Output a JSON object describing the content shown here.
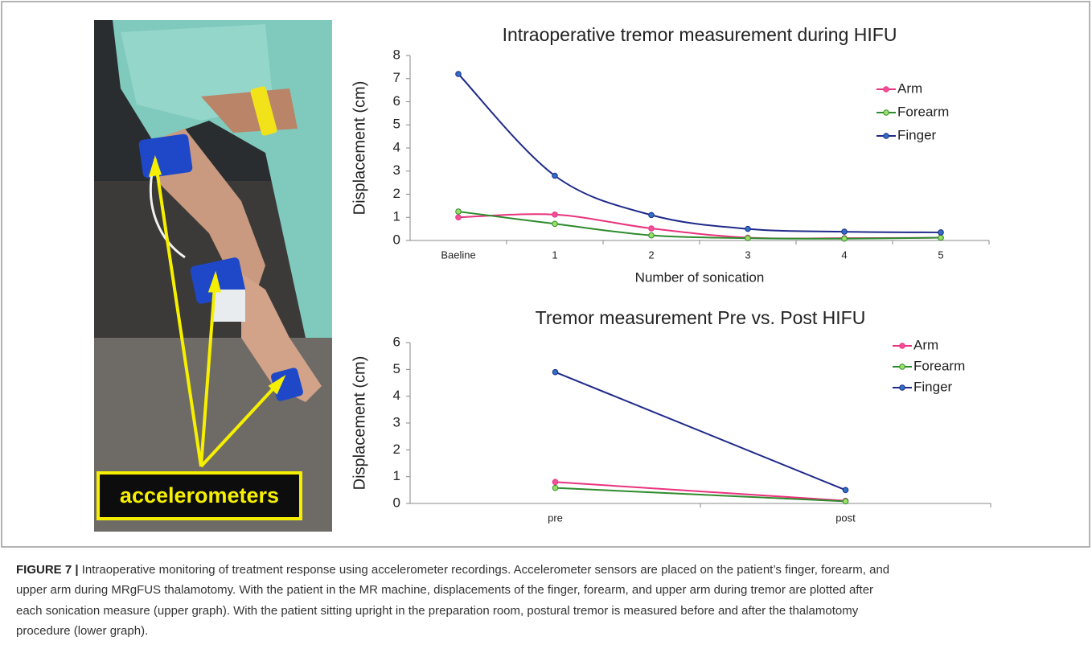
{
  "photo": {
    "label": "accelerometers"
  },
  "chart_data": [
    {
      "type": "line",
      "smooth": true,
      "title": "Intraoperative tremor measurement during HIFU",
      "x_label": "Number of sonication",
      "y_label": "Displacement (cm)",
      "categories": [
        "Baeline",
        "1",
        "2",
        "3",
        "4",
        "5"
      ],
      "series": [
        {
          "name": "Arm",
          "color": "#e8337d",
          "marker_color": "#f0509a",
          "values": [
            1.0,
            1.12,
            0.52,
            0.12,
            0.1,
            0.12
          ]
        },
        {
          "name": "Forearm",
          "color": "#2e8b2e",
          "marker_color": "#9ae066",
          "values": [
            1.25,
            0.72,
            0.22,
            0.1,
            0.08,
            0.12
          ]
        },
        {
          "name": "Finger",
          "color": "#1f2a8a",
          "marker_color": "#2f6fc4",
          "values": [
            7.2,
            2.8,
            1.1,
            0.5,
            0.38,
            0.35
          ]
        }
      ],
      "ylim": [
        0,
        8
      ],
      "yticks": [
        0,
        1,
        2,
        3,
        4,
        5,
        6,
        7,
        8
      ],
      "legend": "upper right"
    },
    {
      "type": "line",
      "smooth": false,
      "title": "Tremor measurement Pre vs. Post HIFU",
      "y_label": "Displacement (cm)",
      "categories": [
        "pre",
        "post"
      ],
      "series": [
        {
          "name": "Arm",
          "color": "#e8337d",
          "marker_color": "#f0509a",
          "values": [
            0.8,
            0.1
          ]
        },
        {
          "name": "Forearm",
          "color": "#2e8b2e",
          "marker_color": "#9ae066",
          "values": [
            0.58,
            0.08
          ]
        },
        {
          "name": "Finger",
          "color": "#1f2a8a",
          "marker_color": "#2f6fc4",
          "values": [
            4.9,
            0.5
          ]
        }
      ],
      "ylim": [
        0,
        6
      ],
      "yticks": [
        0,
        1,
        2,
        3,
        4,
        5,
        6
      ],
      "legend": "upper right"
    }
  ],
  "caption": {
    "label": "FIGURE 7 |",
    "lines": [
      "Intraoperative monitoring of treatment response using accelerometer recordings. Accelerometer sensors are placed on the patient’s finger, forearm, and",
      "upper arm during MRgFUS thalamotomy. With the patient in the MR machine, displacements of the finger, forearm, and upper arm during tremor are plotted after",
      "each sonication measure (upper graph). With the patient sitting upright in the preparation room, postural tremor is measured before and after the thalamotomy",
      "procedure (lower graph)."
    ]
  }
}
